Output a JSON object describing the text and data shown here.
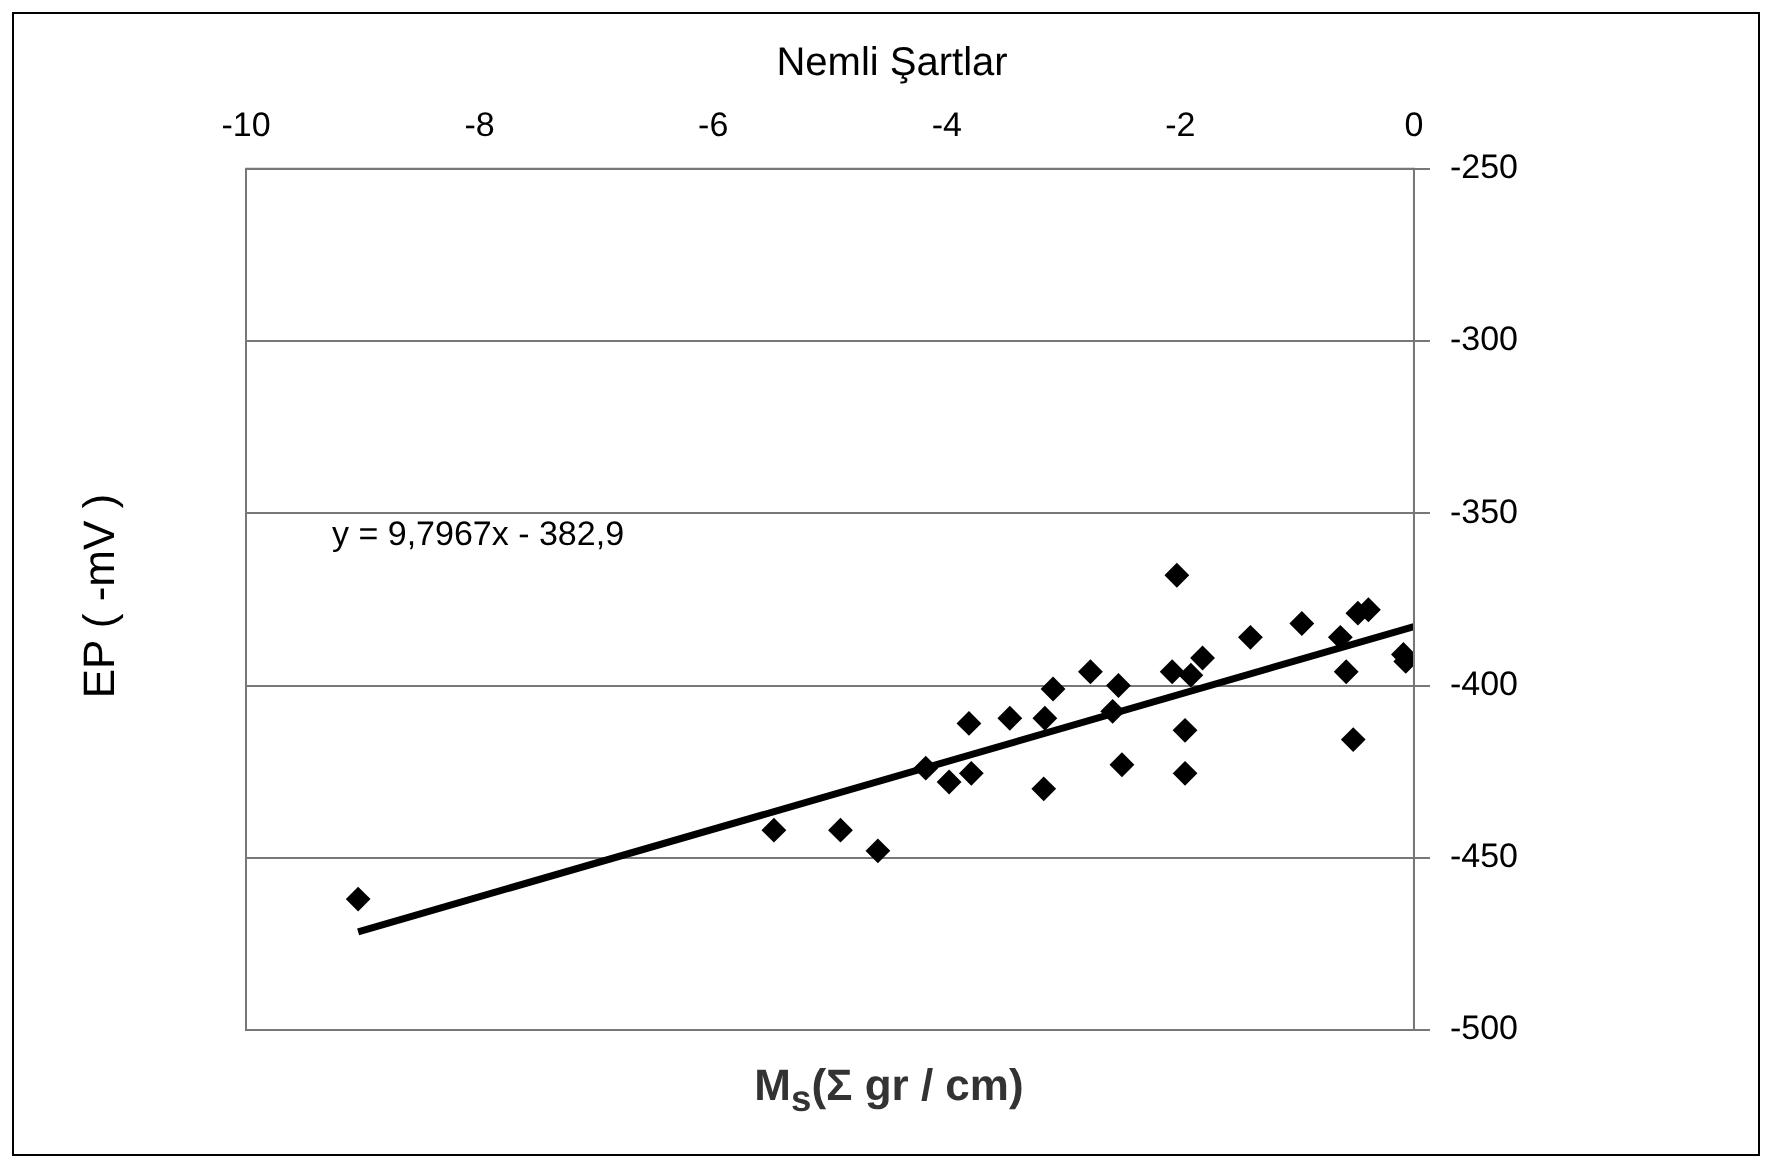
{
  "chart_data": {
    "type": "scatter",
    "title": "Nemli Şartlar",
    "xlabel": "M$_{s}$(Σ gr / cm)",
    "ylabel": "EP ( -mV )",
    "annotations": [
      "y = 9,7967x - 382,9"
    ],
    "xlim": [
      -10,
      0
    ],
    "xticks": [
      -10,
      -8,
      -6,
      -4,
      -2,
      0
    ],
    "ylim": [
      -500,
      -250
    ],
    "yticks": [
      -500,
      -450,
      -400,
      -350,
      -300,
      -250
    ],
    "grid": "y",
    "marker": "diamond",
    "legend": false,
    "series": [
      {
        "color": "#000000",
        "x": [
          -9.04,
          -5.48,
          -4.91,
          -4.59,
          -4.18,
          -3.98,
          -3.79,
          -3.81,
          -3.46,
          -3.16,
          -3.17,
          -2.58,
          -2.5,
          -1.96,
          -1.96,
          -0.52,
          -3.09,
          -2.77,
          -2.53,
          -2.03,
          -2.07,
          -1.91,
          -1.81,
          -1.4,
          -0.96,
          -0.63,
          -0.58,
          -0.48,
          -0.39,
          -0.09,
          -0.07
        ],
        "values": [
          -462,
          -442,
          -442,
          -448,
          -424,
          -428,
          -425.5,
          -411,
          -409.5,
          -409.5,
          -430,
          -407.5,
          -423,
          -413,
          -425.5,
          -415.7,
          -401,
          -396,
          -400,
          -368,
          -396,
          -397,
          -392,
          -386,
          -382,
          -386,
          -396,
          -379,
          -378,
          -391,
          -393
        ]
      },
      {
        "type": "line",
        "color": "#000000",
        "line_style": "solid",
        "marker": "none",
        "x": [
          -9.04,
          0
        ],
        "values": [
          -471.5,
          -382.9
        ]
      }
    ]
  }
}
